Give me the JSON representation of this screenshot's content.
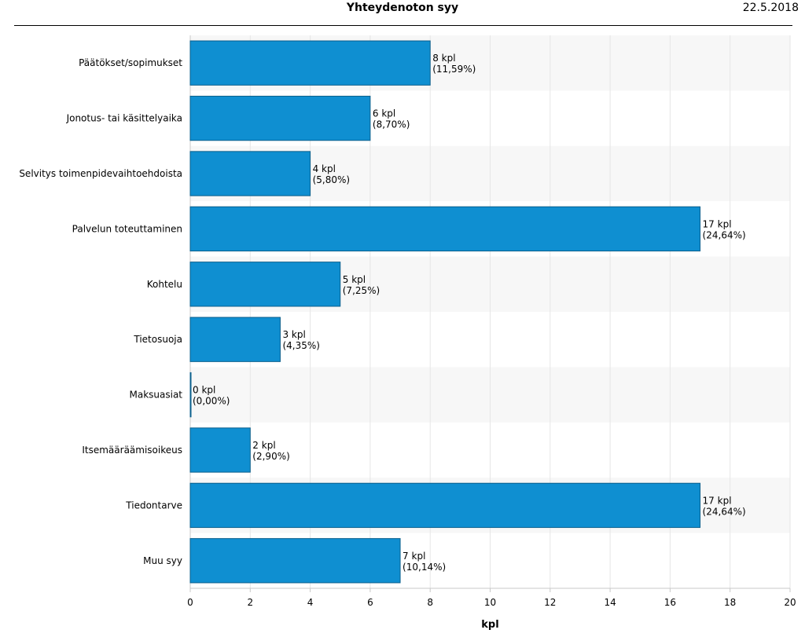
{
  "header": {
    "title": "Yhteydenoton syy",
    "date": "22.5.2018"
  },
  "chart_data": {
    "type": "bar",
    "orientation": "horizontal",
    "title": "Yhteydenoton syy",
    "xlabel": "kpl",
    "ylabel": "",
    "xlim": [
      0,
      20
    ],
    "xticks": [
      0,
      2,
      4,
      6,
      8,
      10,
      12,
      14,
      16,
      18,
      20
    ],
    "grid": true,
    "categories": [
      "Päätökset/sopimukset",
      "Jonotus- tai käsittelyaika",
      "Selvitys toimenpidevaihtoehdoista",
      "Palvelun toteuttaminen",
      "Kohtelu",
      "Tietosuoja",
      "Maksuasiat",
      "Itsemääräämisoikeus",
      "Tiedontarve",
      "Muu syy"
    ],
    "values": [
      8,
      6,
      4,
      17,
      5,
      3,
      0,
      2,
      17,
      7
    ],
    "value_labels": [
      "8 kpl",
      "6 kpl",
      "4 kpl",
      "17 kpl",
      "5 kpl",
      "3 kpl",
      "0 kpl",
      "2 kpl",
      "17 kpl",
      "7 kpl"
    ],
    "percent_labels": [
      "(11,59%)",
      "(8,70%)",
      "(5,80%)",
      "(24,64%)",
      "(7,25%)",
      "(4,35%)",
      "(0,00%)",
      "(2,90%)",
      "(24,64%)",
      "(10,14%)"
    ],
    "bar_color": "#0f8fd1",
    "bar_border_color": "#0a5f8c",
    "band_color": "#f7f7f7",
    "grid_color": "#e6e6e6"
  }
}
